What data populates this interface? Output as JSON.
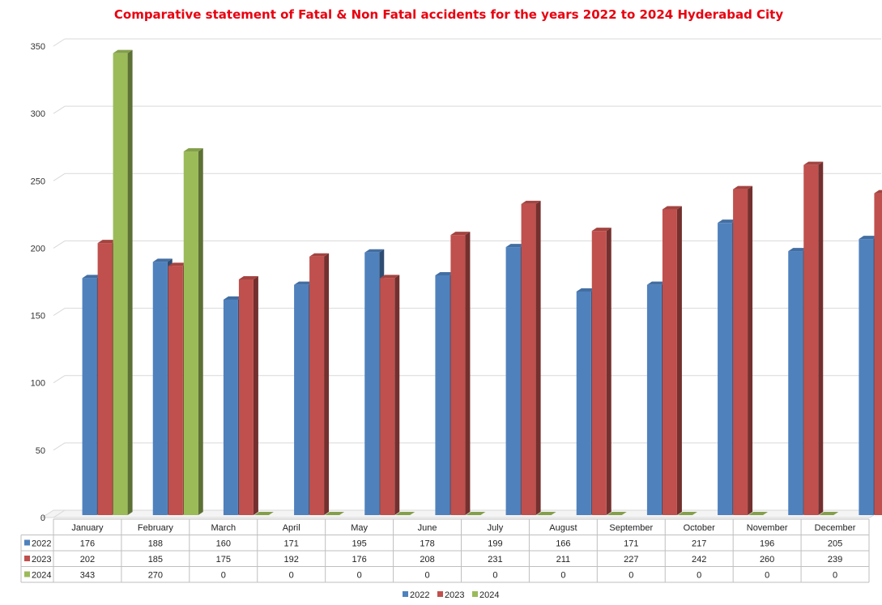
{
  "chart_data": {
    "type": "bar",
    "title": "Comparative statement of Fatal & Non Fatal accidents for the years  2022 to 2024 Hyderabad City",
    "categories": [
      "January",
      "February",
      "March",
      "April",
      "May",
      "June",
      "July",
      "August",
      "September",
      "October",
      "November",
      "December"
    ],
    "series": [
      {
        "name": "2022",
        "color": "#4F81BD",
        "values": [
          176,
          188,
          160,
          171,
          195,
          178,
          199,
          166,
          171,
          217,
          196,
          205
        ]
      },
      {
        "name": "2023",
        "color": "#C0504D",
        "values": [
          202,
          185,
          175,
          192,
          176,
          208,
          231,
          211,
          227,
          242,
          260,
          239
        ]
      },
      {
        "name": "2024",
        "color": "#9BBB59",
        "values": [
          343,
          270,
          0,
          0,
          0,
          0,
          0,
          0,
          0,
          0,
          0,
          0
        ]
      }
    ],
    "ylim": [
      0,
      350
    ],
    "yticks": [
      0,
      50,
      100,
      150,
      200,
      250,
      300,
      350
    ],
    "grid": true,
    "legend": "bottom",
    "data_table": true,
    "style": "3d-clustered-column",
    "title_color": "#E8000F"
  }
}
